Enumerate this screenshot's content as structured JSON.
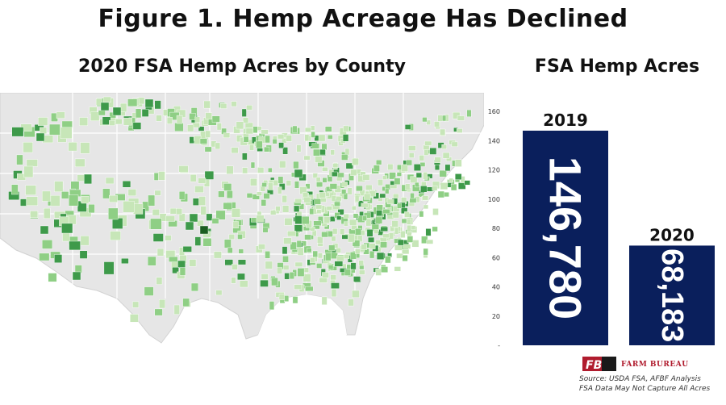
{
  "figure": {
    "title": "Figure 1. Hemp Acreage Has Declined",
    "map_title": "2020 FSA Hemp Acres by County",
    "chart_title": "FSA Hemp Acres",
    "source_line1": "Source:  USDA FSA, AFBF Analysis",
    "source_line2": "FSA Data May Not Capture All Acres",
    "brand": "FARM BUREAU",
    "brand_mark": "FB"
  },
  "colors": {
    "bar": "#0a1f5c",
    "map_land": "#e6e6e6",
    "map_border": "#ffffff",
    "county_light": "#c7e6b8",
    "county_mid": "#8fcf85",
    "county_dark": "#3e9a4a",
    "county_darkest": "#1b5e20",
    "brand_red": "#b01c2e"
  },
  "chart_data": {
    "type": "bar",
    "categories": [
      "2019",
      "2020"
    ],
    "values": [
      146780,
      68183
    ],
    "value_labels": [
      "146,780",
      "68,183"
    ],
    "title": "FSA Hemp Acres",
    "xlabel": "",
    "ylabel": "",
    "y_ticks": [
      "-",
      "20",
      "40",
      "60",
      "80",
      "100",
      "120",
      "140",
      "160"
    ],
    "y_tick_values": [
      0,
      20,
      40,
      60,
      80,
      100,
      120,
      140,
      160
    ],
    "y_unit_scale": 1000,
    "ylim": [
      0,
      160
    ],
    "grid": false,
    "legend": "none"
  }
}
